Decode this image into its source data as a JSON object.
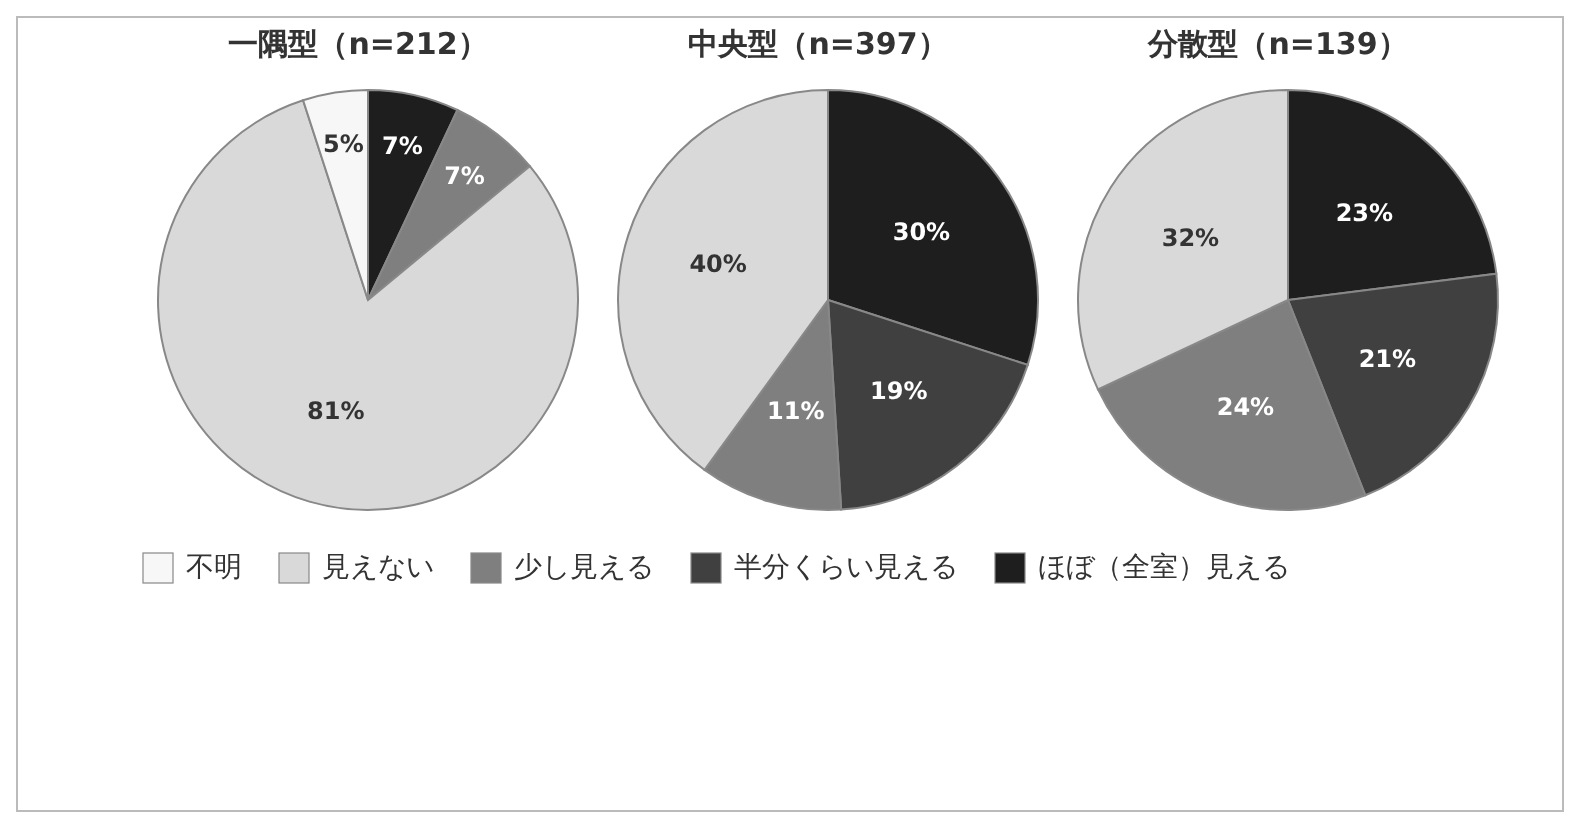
{
  "chart_data": [
    {
      "type": "pie",
      "title": "一隅型（n=212）",
      "categories": [
        "ほぼ（全室）見える",
        "半分くらい見える",
        "少し見える",
        "見えない",
        "不明"
      ],
      "values": [
        7,
        0,
        7,
        81,
        5
      ],
      "value_labels": [
        "7%",
        null,
        "7%",
        "81%",
        "5%"
      ],
      "colors": [
        "#1e1e1e",
        "#404040",
        "#7f7f7f",
        "#d9d9d9",
        "#f7f7f7"
      ],
      "legend": "bottom"
    },
    {
      "type": "pie",
      "title": "中央型（n=397）",
      "categories": [
        null,
        null,
        null,
        null,
        null
      ],
      "values": [
        30,
        19,
        11,
        40,
        0
      ],
      "value_labels": [
        "30%",
        "19%",
        "11%",
        "40%",
        null
      ],
      "colors": [
        "#1e1e1e",
        "#404040",
        "#7f7f7f",
        "#d9d9d9",
        "#ffffff"
      ]
    },
    {
      "type": "pie",
      "title": "分散型（n=139）",
      "categories": [
        null,
        null,
        null,
        null,
        null
      ],
      "values": [
        23,
        21,
        24,
        32,
        0
      ],
      "value_labels": [
        "23%",
        "21%",
        "24%",
        "32%",
        null
      ],
      "colors": [
        "#1e1e1e",
        "#404040",
        "#7f7f7f",
        "#d9d9d9",
        "#ffffff"
      ]
    }
  ]
}
